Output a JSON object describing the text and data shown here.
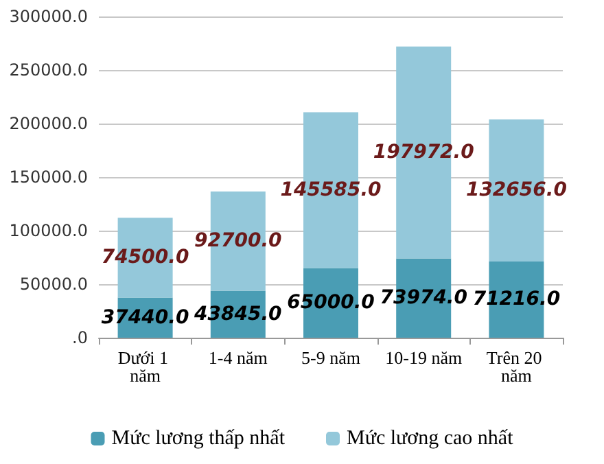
{
  "chart_data": {
    "type": "bar",
    "stacked": true,
    "categories": [
      "Dưới 1 năm",
      "1-4 năm",
      "5-9 năm",
      "10-19 năm",
      "Trên 20 năm"
    ],
    "series": [
      {
        "name": "Mức lương thấp nhất",
        "color": "#4a9db4",
        "values": [
          37440,
          43845,
          65000,
          73974,
          71216
        ],
        "value_labels": [
          "37440.0",
          "43845.0",
          "65000.0",
          "73974.0",
          "71216.0"
        ]
      },
      {
        "name": "Mức lương cao nhất",
        "color": "#94c8da",
        "values": [
          74500,
          92700,
          145585,
          197972,
          132656
        ],
        "value_labels": [
          "74500.0",
          "92700.0",
          "145585.0",
          "197972.0",
          "132656.0"
        ]
      }
    ],
    "ylim": [
      0,
      300000
    ],
    "yticks": [
      {
        "value": 0,
        "label": ".0"
      },
      {
        "value": 50000,
        "label": "50000.0"
      },
      {
        "value": 100000,
        "label": "100000.0"
      },
      {
        "value": 150000,
        "label": "150000.0"
      },
      {
        "value": 200000,
        "label": "200000.0"
      },
      {
        "value": 250000,
        "label": "250000.0"
      },
      {
        "value": 300000,
        "label": "300000.0"
      }
    ],
    "grid": "y",
    "legend": "bottom"
  }
}
